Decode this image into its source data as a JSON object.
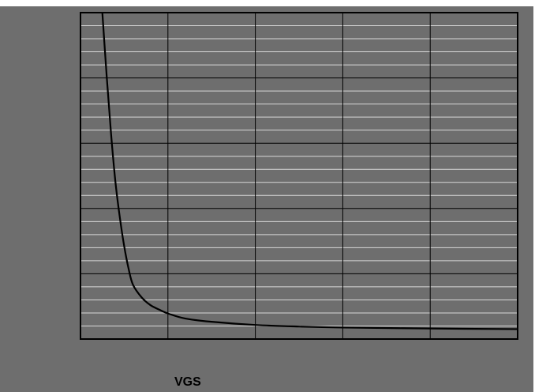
{
  "chart_data": {
    "type": "line",
    "title": "",
    "xlabel": "VGS",
    "ylabel": "",
    "grid": true,
    "x_major_divisions": 5,
    "y_major_divisions": 5,
    "y_minor_per_major": 5,
    "series": [
      {
        "values_description": "",
        "points": [
          [
            0.25,
            5.0
          ],
          [
            0.3,
            4.0
          ],
          [
            0.35,
            3.1
          ],
          [
            0.4,
            2.35
          ],
          [
            0.45,
            1.8
          ],
          [
            0.5,
            1.35
          ],
          [
            0.55,
            1.0
          ],
          [
            0.6,
            0.75
          ],
          [
            0.7,
            0.55
          ],
          [
            0.8,
            0.43
          ],
          [
            0.9,
            0.36
          ],
          [
            1.0,
            0.3
          ],
          [
            1.2,
            0.22
          ],
          [
            1.5,
            0.17
          ],
          [
            2.0,
            0.12
          ],
          [
            2.5,
            0.095
          ],
          [
            3.0,
            0.08
          ],
          [
            4.0,
            0.065
          ],
          [
            5.0,
            0.055
          ]
        ]
      }
    ],
    "xlim": [
      0,
      5
    ],
    "ylim": [
      -0.1,
      5
    ],
    "colors": {
      "background": "#6e6e6e",
      "frame": "#000000",
      "major_grid": "#000000",
      "minor_grid": "#d8d8d8",
      "curve": "#000000"
    }
  }
}
